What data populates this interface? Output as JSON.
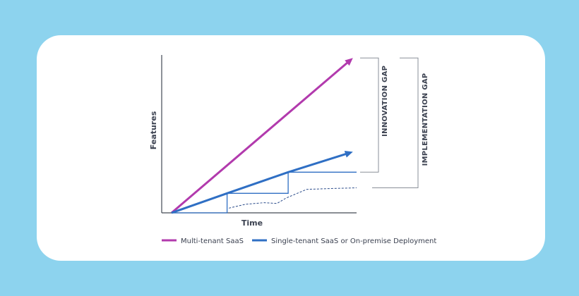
{
  "colors": {
    "background": "#8dd3ee",
    "card": "#ffffff",
    "multi_tenant": "#b23aad",
    "single_tenant": "#2f6fc4",
    "axis": "#444a55",
    "bracket": "#8a8f98"
  },
  "chart_data": {
    "type": "line",
    "title": "",
    "xlabel": "Time",
    "ylabel": "Features",
    "xlim": [
      0,
      10
    ],
    "ylim": [
      0,
      10
    ],
    "grid": false,
    "legend_position": "bottom",
    "series": [
      {
        "name": "Multi-tenant SaaS",
        "color": "#b23aad",
        "points": [
          [
            0,
            0
          ],
          [
            9.8,
            9.9
          ]
        ]
      },
      {
        "name": "Single-tenant SaaS or On-premise Deployment",
        "color": "#2f6fc4",
        "points": [
          [
            0,
            0
          ],
          [
            3.0,
            1.25
          ],
          [
            6.3,
            2.6
          ],
          [
            9.8,
            3.9
          ]
        ]
      }
    ],
    "step_lines": [
      [
        [
          0,
          0
        ],
        [
          3.0,
          0
        ],
        [
          3.0,
          1.25
        ],
        [
          6.3,
          1.25
        ],
        [
          6.3,
          2.6
        ],
        [
          10,
          2.6
        ]
      ]
    ],
    "dashed_line": [
      [
        3.1,
        0.3
      ],
      [
        4.0,
        0.55
      ],
      [
        5.0,
        0.65
      ],
      [
        5.7,
        0.6
      ],
      [
        6.2,
        0.95
      ],
      [
        7.3,
        1.5
      ],
      [
        8.5,
        1.55
      ],
      [
        10,
        1.6
      ]
    ],
    "annotations": [
      {
        "label": "INNOVATION GAP",
        "from_y": 2.6,
        "to_y": 9.9
      },
      {
        "label": "IMPLEMENTATION GAP",
        "from_y": 1.6,
        "to_y": 9.9
      }
    ]
  },
  "legend": {
    "items": [
      {
        "label": "Multi-tenant SaaS",
        "color": "#b23aad"
      },
      {
        "label": "Single-tenant SaaS or On-premise Deployment",
        "color": "#2f6fc4"
      }
    ]
  }
}
